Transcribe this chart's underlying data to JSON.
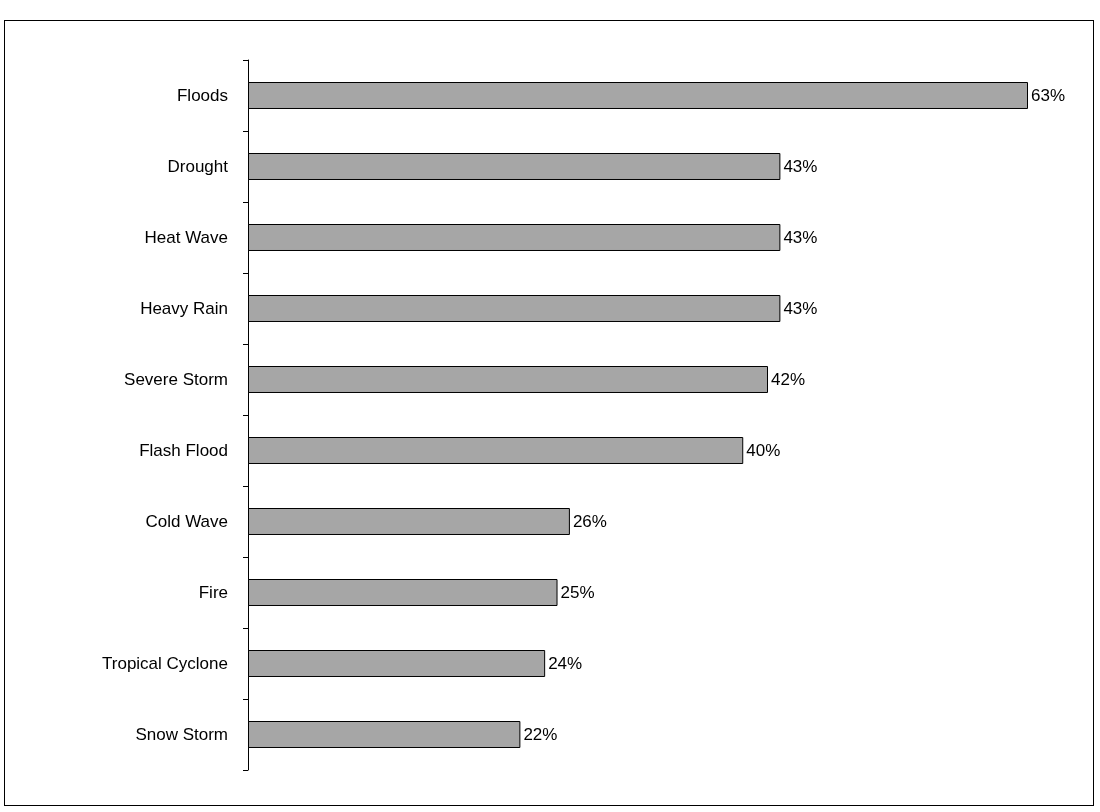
{
  "chart_data": {
    "type": "bar",
    "orientation": "horizontal",
    "categories": [
      "Floods",
      "Drought",
      "Heat Wave",
      "Heavy Rain",
      "Severe Storm",
      "Flash Flood",
      "Cold Wave",
      "Fire",
      "Tropical Cyclone",
      "Snow Storm"
    ],
    "values": [
      63,
      43,
      43,
      43,
      42,
      40,
      26,
      25,
      24,
      22
    ],
    "value_labels": [
      "63%",
      "43%",
      "43%",
      "43%",
      "42%",
      "40%",
      "26%",
      "25%",
      "24%",
      "22%"
    ],
    "color": "#a6a6a6",
    "tick_labels": "y"
  }
}
